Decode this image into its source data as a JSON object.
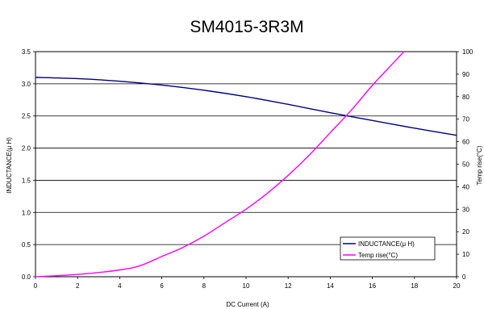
{
  "chart_data": {
    "type": "line",
    "title": "SM4015-3R3M",
    "xlabel": "DC Current (A)",
    "ylabel_left": "INDUCTANCE(μ H)",
    "ylabel_right": "Temp rise(°C)",
    "xlim": [
      0,
      20
    ],
    "ylim_left": [
      0,
      3.5
    ],
    "ylim_right": [
      0,
      100
    ],
    "x_ticks": [
      "0",
      "2",
      "4",
      "6",
      "8",
      "10",
      "12",
      "14",
      "16",
      "18",
      "20"
    ],
    "y_left_ticks": [
      "0.0",
      "0.5",
      "1.0",
      "1.5",
      "2.0",
      "2.5",
      "3.0",
      "3.5"
    ],
    "y_right_ticks": [
      "0",
      "10",
      "20",
      "30",
      "40",
      "50",
      "60",
      "70",
      "80",
      "90",
      "100"
    ],
    "grid": "horizontal",
    "legend_position": "bottom-right",
    "series": [
      {
        "name": "INDUCTANCE(μ H)",
        "axis": "left",
        "color": "#000080",
        "x": [
          0,
          2,
          4,
          6,
          8,
          10,
          12,
          14,
          16,
          18,
          20
        ],
        "y": [
          3.1,
          3.08,
          3.04,
          2.98,
          2.9,
          2.8,
          2.68,
          2.55,
          2.43,
          2.31,
          2.2
        ]
      },
      {
        "name": "Temp rise(°C)",
        "axis": "right",
        "color": "#ff00ff",
        "x": [
          0,
          2,
          4,
          5,
          6,
          7,
          8,
          9,
          10,
          11,
          12,
          13,
          14,
          15,
          16,
          17,
          17.5
        ],
        "y": [
          0,
          1,
          3,
          5,
          9,
          13,
          18,
          24,
          30,
          37,
          45,
          54,
          64,
          74,
          85,
          95,
          100
        ]
      }
    ]
  }
}
